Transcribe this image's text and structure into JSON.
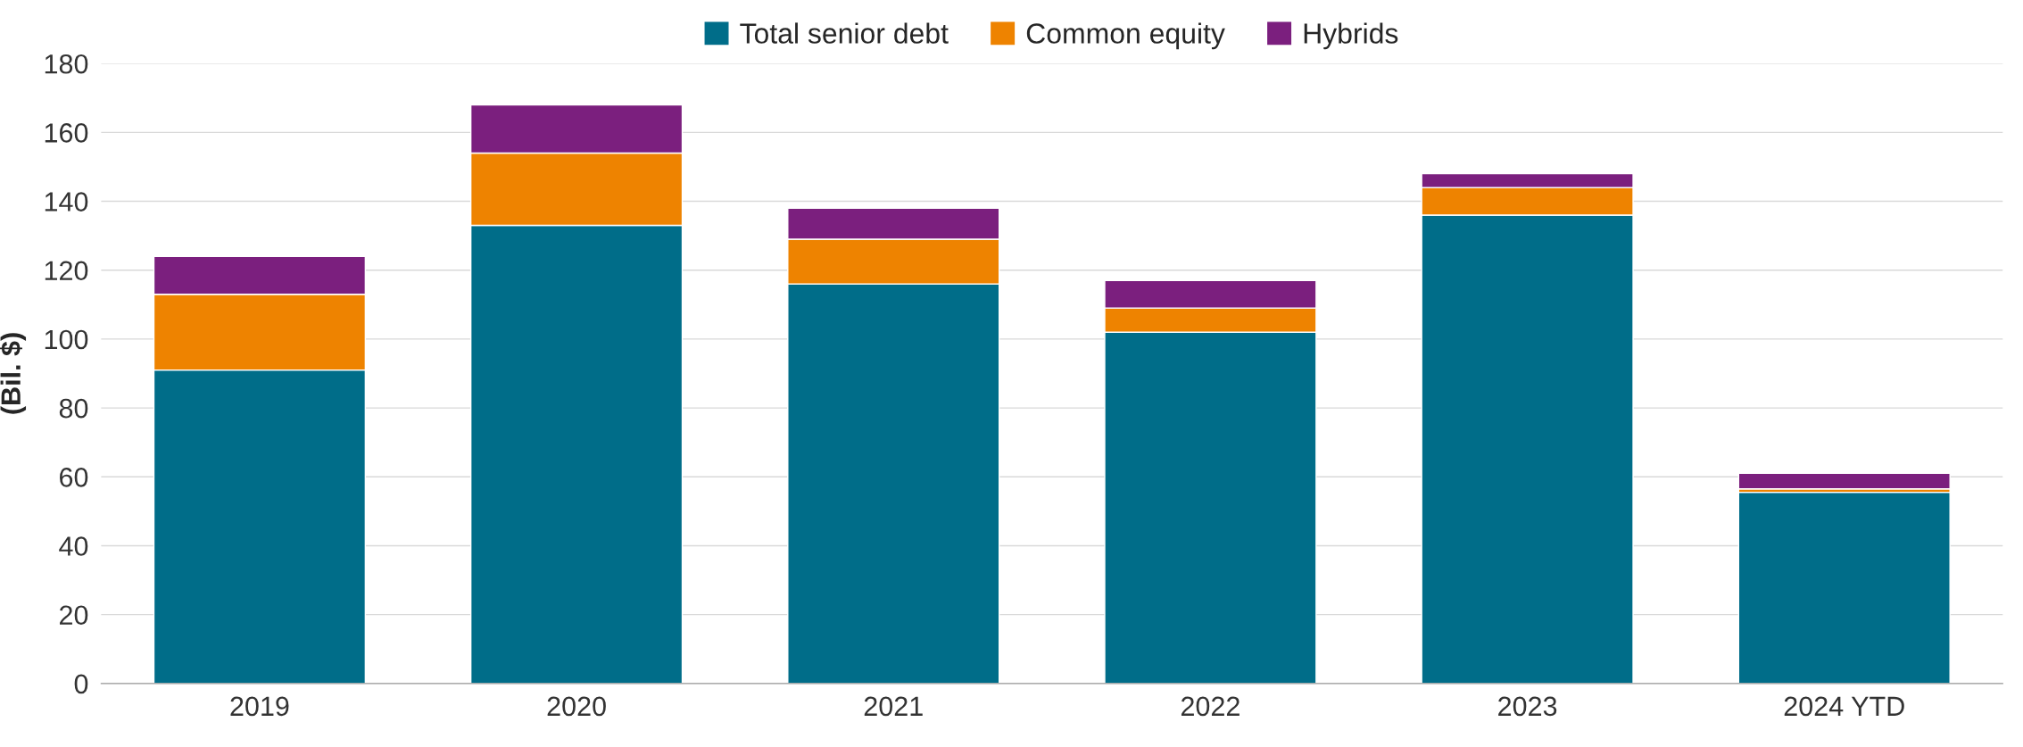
{
  "chart_data": {
    "type": "bar",
    "stacked": true,
    "ylabel": "(Bil. $)",
    "categories": [
      "2019",
      "2020",
      "2021",
      "2022",
      "2023",
      "2024 YTD"
    ],
    "series": [
      {
        "name": "Total senior debt",
        "color": "#006d89",
        "values": [
          91,
          133,
          116,
          102,
          136,
          55.5
        ]
      },
      {
        "name": "Common equity",
        "color": "#ee8300",
        "values": [
          22,
          21,
          13,
          7,
          8,
          1
        ]
      },
      {
        "name": "Hybrids",
        "color": "#7b1f7e",
        "values": [
          11,
          14,
          9,
          8,
          4,
          4.5
        ]
      }
    ],
    "ylim": [
      0,
      180
    ],
    "yticks": [
      0,
      20,
      40,
      60,
      80,
      100,
      120,
      140,
      160,
      180
    ],
    "grid": "y",
    "legend": "top"
  }
}
